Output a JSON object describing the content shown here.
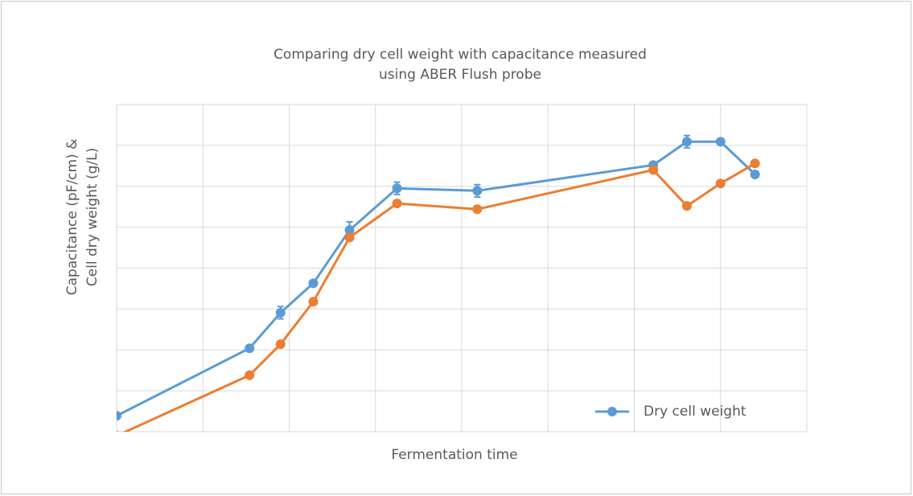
{
  "chart_data": {
    "type": "line",
    "title": [
      "Comparing dry cell weight with capacitance measured",
      "using ABER Flush probe"
    ],
    "x_label": "Fermentation time",
    "y_label": [
      "Capacitance (pF/cm) &",
      "Cell dry weight (g/L)"
    ],
    "x": [
      0,
      1.54,
      1.9,
      2.28,
      2.7,
      3.25,
      4.18,
      6.22,
      6.61,
      7.0,
      7.4
    ],
    "series": [
      {
        "name": "Dry cell weight",
        "color": "#5b9bd5",
        "values": [
          0.39,
          2.04,
          2.91,
          3.63,
          4.93,
          5.95,
          5.89,
          6.52,
          7.09,
          7.09,
          6.29
        ],
        "errors": [
          0,
          0,
          0.15,
          0,
          0.2,
          0.15,
          0.15,
          0,
          0.15,
          0,
          0
        ]
      },
      {
        "color": "#ed7d31",
        "values": [
          -0.1,
          1.38,
          2.14,
          3.18,
          4.75,
          5.58,
          5.44,
          6.4,
          5.52,
          6.07,
          6.56
        ]
      }
    ],
    "xlim": [
      0,
      8
    ],
    "ylim": [
      0,
      8
    ],
    "xticks": [
      0,
      1,
      2,
      3,
      4,
      5,
      6,
      7,
      8
    ],
    "yticks": [
      0,
      1,
      2,
      3,
      4,
      5,
      6,
      7,
      8
    ],
    "grid": true,
    "tick_labels": false,
    "legend": "lower right"
  }
}
